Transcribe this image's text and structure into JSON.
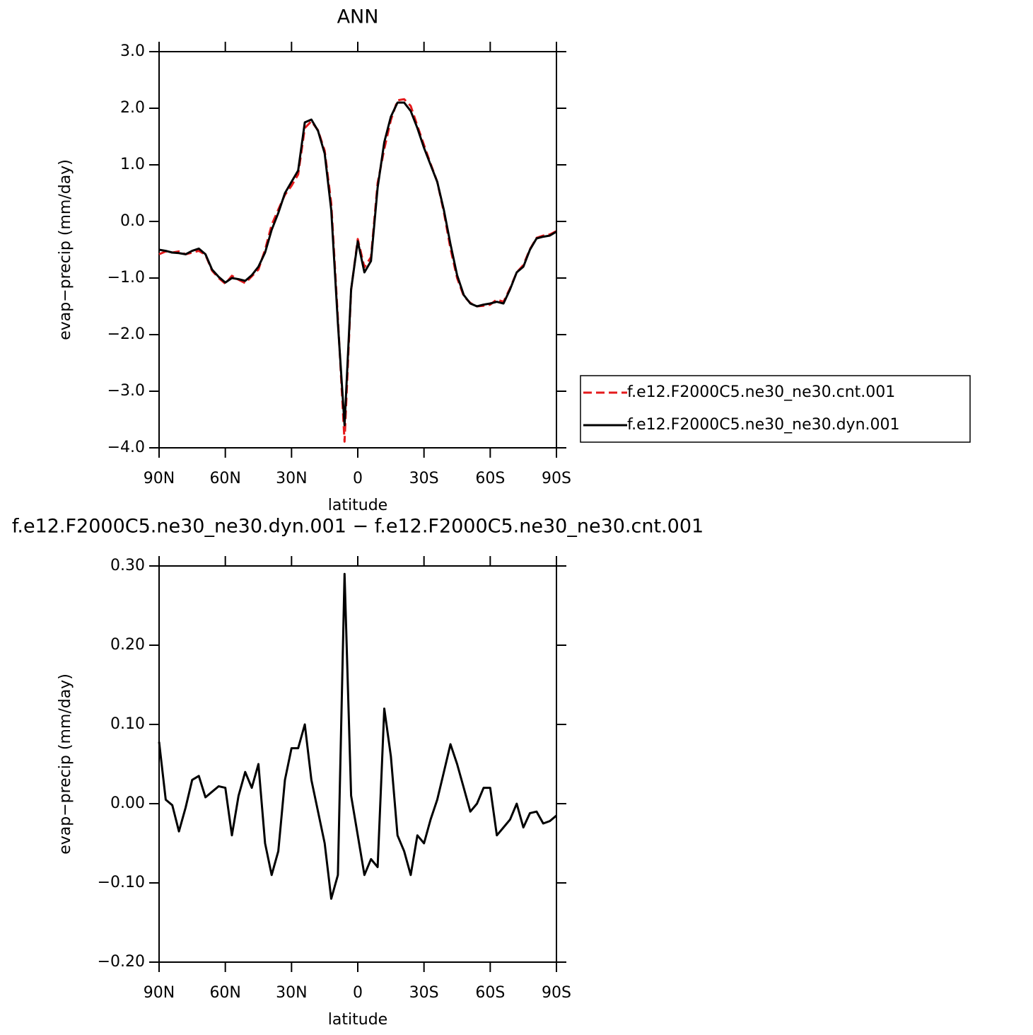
{
  "chart_data": [
    {
      "type": "line",
      "title": "ANN",
      "x_label": "latitude",
      "y_label": "evap−precip (mm/day)",
      "x": [
        90,
        87,
        84,
        81,
        78,
        75,
        72,
        69,
        66,
        63,
        60,
        57,
        54,
        51,
        48,
        45,
        42,
        39,
        36,
        33,
        30,
        27,
        24,
        21,
        18,
        15,
        12,
        9,
        6,
        3,
        0,
        -3,
        -6,
        -9,
        -12,
        -15,
        -18,
        -21,
        -24,
        -27,
        -30,
        -33,
        -36,
        -39,
        -42,
        -45,
        -48,
        -51,
        -54,
        -57,
        -60,
        -63,
        -66,
        -69,
        -72,
        -75,
        -78,
        -81,
        -84,
        -87,
        -90
      ],
      "xlim": [
        90,
        -90
      ],
      "xticks": [
        {
          "value": 90,
          "label": "90N"
        },
        {
          "value": 60,
          "label": "60N"
        },
        {
          "value": 30,
          "label": "30N"
        },
        0,
        {
          "value": -30,
          "label": "30S"
        },
        {
          "value": -60,
          "label": "60S"
        },
        {
          "value": -90,
          "label": "90S"
        }
      ],
      "ylim": [
        -4,
        3
      ],
      "yticks": [
        {
          "value": -4,
          "label": "−4.0"
        },
        {
          "value": -3,
          "label": "−3.0"
        },
        {
          "value": -2,
          "label": "−2.0"
        },
        {
          "value": -1,
          "label": "−1.0"
        },
        {
          "value": 0,
          "label": "0.0"
        },
        {
          "value": 1,
          "label": "1.0"
        },
        {
          "value": 2,
          "label": "2.0"
        },
        {
          "value": 3,
          "label": "3.0"
        }
      ],
      "legend": "right",
      "series": [
        {
          "name": "f.e12.F2000C5.ne30_ne30.cnt.001",
          "color": "#e41a1c",
          "linestyle": "dashed",
          "values": [
            -0.58,
            -0.53,
            -0.55,
            -0.53,
            -0.58,
            -0.55,
            -0.52,
            -0.59,
            -0.87,
            -1.0,
            -1.1,
            -0.96,
            -1.03,
            -1.09,
            -0.97,
            -0.85,
            -0.5,
            -0.06,
            0.21,
            0.47,
            0.63,
            0.83,
            1.65,
            1.77,
            1.61,
            1.25,
            0.32,
            -1.71,
            -3.89,
            -1.21,
            -0.31,
            -0.81,
            -0.63,
            0.68,
            1.28,
            1.79,
            2.14,
            2.16,
            2.04,
            1.69,
            1.35,
            1.02,
            0.7,
            0.16,
            -0.48,
            -1.0,
            -1.32,
            -1.44,
            -1.5,
            -1.49,
            -1.47,
            -1.38,
            -1.42,
            -1.18,
            -0.9,
            -0.77,
            -0.49,
            -0.29,
            -0.25,
            -0.23,
            -0.17
          ]
        },
        {
          "name": "f.e12.F2000C5.ne30_ne30.dyn.001",
          "color": "#000000",
          "linestyle": "solid",
          "values": [
            -0.5,
            -0.52,
            -0.55,
            -0.56,
            -0.58,
            -0.52,
            -0.48,
            -0.58,
            -0.85,
            -0.98,
            -1.08,
            -1.0,
            -1.02,
            -1.05,
            -0.95,
            -0.8,
            -0.55,
            -0.15,
            0.15,
            0.5,
            0.7,
            0.9,
            1.75,
            1.8,
            1.6,
            1.2,
            0.2,
            -1.8,
            -3.6,
            -1.2,
            -0.35,
            -0.9,
            -0.7,
            0.6,
            1.4,
            1.85,
            2.1,
            2.1,
            1.95,
            1.65,
            1.3,
            1.0,
            0.7,
            0.2,
            -0.4,
            -0.95,
            -1.3,
            -1.45,
            -1.5,
            -1.47,
            -1.45,
            -1.42,
            -1.45,
            -1.2,
            -0.9,
            -0.8,
            -0.5,
            -0.3,
            -0.27,
            -0.25,
            -0.18
          ]
        }
      ]
    },
    {
      "type": "line",
      "title": "f.e12.F2000C5.ne30_ne30.dyn.001 − f.e12.F2000C5.ne30_ne30.cnt.001",
      "x_label": "latitude",
      "y_label": "evap−precip (mm/day)",
      "x": [
        90,
        87,
        84,
        81,
        78,
        75,
        72,
        69,
        66,
        63,
        60,
        57,
        54,
        51,
        48,
        45,
        42,
        39,
        36,
        33,
        30,
        27,
        24,
        21,
        18,
        15,
        12,
        9,
        6,
        3,
        0,
        -3,
        -6,
        -9,
        -12,
        -15,
        -18,
        -21,
        -24,
        -27,
        -30,
        -33,
        -36,
        -39,
        -42,
        -45,
        -48,
        -51,
        -54,
        -57,
        -60,
        -63,
        -66,
        -69,
        -72,
        -75,
        -78,
        -81,
        -84,
        -87,
        -90
      ],
      "xlim": [
        90,
        -90
      ],
      "xticks": [
        {
          "value": 90,
          "label": "90N"
        },
        {
          "value": 60,
          "label": "60N"
        },
        {
          "value": 30,
          "label": "30N"
        },
        0,
        {
          "value": -30,
          "label": "30S"
        },
        {
          "value": -60,
          "label": "60S"
        },
        {
          "value": -90,
          "label": "90S"
        }
      ],
      "ylim": [
        -0.2,
        0.3
      ],
      "yticks": [
        {
          "value": -0.2,
          "label": "−0.20"
        },
        {
          "value": -0.1,
          "label": "−0.10"
        },
        {
          "value": 0,
          "label": "0.00"
        },
        {
          "value": 0.1,
          "label": "0.10"
        },
        {
          "value": 0.2,
          "label": "0.20"
        },
        {
          "value": 0.3,
          "label": "0.30"
        }
      ],
      "color": "#000000",
      "values": [
        0.078,
        0.005,
        -0.002,
        -0.035,
        -0.005,
        0.03,
        0.035,
        0.008,
        0.015,
        0.022,
        0.02,
        -0.04,
        0.01,
        0.04,
        0.02,
        0.05,
        -0.05,
        -0.09,
        -0.06,
        0.03,
        0.07,
        0.07,
        0.1,
        0.03,
        -0.01,
        -0.05,
        -0.12,
        -0.09,
        0.29,
        0.01,
        -0.04,
        -0.09,
        -0.07,
        -0.08,
        0.12,
        0.06,
        -0.04,
        -0.06,
        -0.09,
        -0.04,
        -0.05,
        -0.02,
        0.005,
        0.04,
        0.075,
        0.05,
        0.02,
        -0.01,
        0,
        0.02,
        0.02,
        -0.04,
        -0.03,
        -0.02,
        0,
        -0.03,
        -0.012,
        -0.01,
        -0.025,
        -0.022,
        -0.015
      ]
    }
  ]
}
